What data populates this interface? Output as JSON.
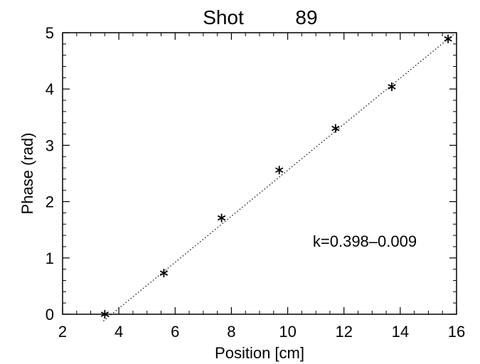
{
  "chart_data": {
    "type": "scatter",
    "title_parts": [
      "Shot",
      "89"
    ],
    "xlabel": "Position [cm]",
    "ylabel": "Phase (rad)",
    "xlim": [
      2,
      16
    ],
    "ylim": [
      0,
      5
    ],
    "xticks": [
      2,
      4,
      6,
      8,
      10,
      12,
      14,
      16
    ],
    "yticks": [
      0,
      1,
      2,
      3,
      4,
      5
    ],
    "grid": false,
    "series": [
      {
        "marker": "asterisk",
        "x": [
          3.5,
          5.6,
          7.65,
          9.7,
          11.7,
          13.7,
          15.7
        ],
        "y": [
          0.0,
          0.73,
          1.71,
          2.56,
          3.3,
          4.04,
          4.89
        ]
      }
    ],
    "fit_line": {
      "style": "dotted",
      "x": [
        3.45,
        15.9
      ],
      "y": [
        -0.12,
        4.97
      ]
    },
    "annotation": "k=0.398–0.009"
  }
}
